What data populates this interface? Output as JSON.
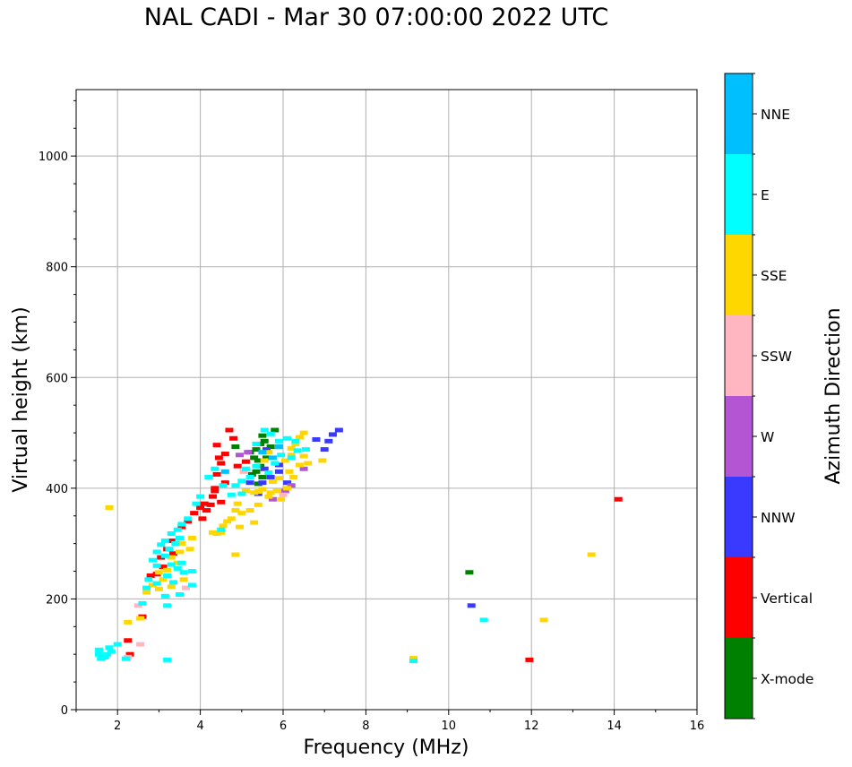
{
  "chart_data": {
    "type": "scatter",
    "title": "NAL CADI - Mar 30 07:00:00 2022 UTC",
    "xlabel": "Frequency (MHz)",
    "ylabel": "Virtual height (km)",
    "xlim": [
      1,
      16
    ],
    "ylim": [
      0,
      1120
    ],
    "xticks": [
      2,
      4,
      6,
      8,
      10,
      12,
      14,
      16
    ],
    "yticks": [
      0,
      200,
      400,
      600,
      800,
      1000
    ],
    "grid": true,
    "colorbar": {
      "title": "Azimuth Direction",
      "categories": [
        "X-mode",
        "Vertical",
        "NNW",
        "W",
        "SSW",
        "SSE",
        "E",
        "NNE"
      ],
      "colors": [
        "#008000",
        "#ff0000",
        "#3a3aff",
        "#b455d4",
        "#ffb6c1",
        "#ffd700",
        "#00ffff",
        "#00bfff"
      ]
    },
    "series": [
      {
        "name": "X-mode",
        "color": "#008000",
        "points": [
          [
            4.85,
            475
          ],
          [
            5.2,
            465
          ],
          [
            5.35,
            470
          ],
          [
            5.4,
            450
          ],
          [
            5.45,
            440
          ],
          [
            5.35,
            430
          ],
          [
            5.5,
            420
          ],
          [
            5.55,
            485
          ],
          [
            5.5,
            495
          ],
          [
            5.6,
            455
          ],
          [
            5.7,
            475
          ],
          [
            5.45,
            480
          ],
          [
            5.3,
            455
          ],
          [
            5.25,
            425
          ],
          [
            5.8,
            505
          ],
          [
            5.4,
            408
          ],
          [
            10.5,
            248
          ]
        ]
      },
      {
        "name": "Vertical",
        "color": "#ff0000",
        "points": [
          [
            4.7,
            505
          ],
          [
            4.8,
            490
          ],
          [
            4.4,
            478
          ],
          [
            4.5,
            445
          ],
          [
            4.6,
            462
          ],
          [
            4.4,
            425
          ],
          [
            4.35,
            400
          ],
          [
            4.3,
            385
          ],
          [
            4.25,
            370
          ],
          [
            4.1,
            372
          ],
          [
            4.15,
            360
          ],
          [
            4.05,
            345
          ],
          [
            3.85,
            355
          ],
          [
            3.7,
            340
          ],
          [
            3.55,
            330
          ],
          [
            3.3,
            305
          ],
          [
            3.2,
            290
          ],
          [
            3.35,
            282
          ],
          [
            3.05,
            275
          ],
          [
            3.1,
            258
          ],
          [
            2.95,
            245
          ],
          [
            2.8,
            242
          ],
          [
            2.25,
            125
          ],
          [
            2.3,
            100
          ],
          [
            2.6,
            168
          ],
          [
            4.5,
            375
          ],
          [
            4.6,
            410
          ],
          [
            4.45,
            455
          ],
          [
            5.1,
            448
          ],
          [
            4.9,
            440
          ],
          [
            1.65,
            95
          ],
          [
            11.95,
            90
          ],
          [
            14.1,
            380
          ],
          [
            4.35,
            395
          ],
          [
            4.0,
            365
          ]
        ]
      },
      {
        "name": "NNW",
        "color": "#3a3aff",
        "points": [
          [
            7.35,
            505
          ],
          [
            7.2,
            497
          ],
          [
            7.1,
            485
          ],
          [
            6.8,
            488
          ],
          [
            5.9,
            442
          ],
          [
            5.9,
            430
          ],
          [
            5.7,
            420
          ],
          [
            5.5,
            410
          ],
          [
            5.4,
            390
          ],
          [
            5.55,
            435
          ],
          [
            6.1,
            410
          ],
          [
            7.0,
            470
          ],
          [
            5.6,
            470
          ],
          [
            10.55,
            188
          ],
          [
            5.2,
            410
          ]
        ]
      },
      {
        "name": "W",
        "color": "#b455d4",
        "points": [
          [
            6.2,
            405
          ],
          [
            6.05,
            395
          ],
          [
            5.15,
            465
          ],
          [
            5.75,
            380
          ],
          [
            4.95,
            460
          ],
          [
            6.5,
            435
          ]
        ]
      },
      {
        "name": "SSW",
        "color": "#ffb6c1",
        "points": [
          [
            2.55,
            118
          ],
          [
            2.5,
            188
          ],
          [
            6.0,
            388
          ],
          [
            5.05,
            430
          ],
          [
            3.65,
            220
          ],
          [
            3.4,
            300
          ],
          [
            2.25,
            95
          ]
        ]
      },
      {
        "name": "SSE",
        "color": "#ffd700",
        "points": [
          [
            6.5,
            500
          ],
          [
            6.4,
            492
          ],
          [
            6.3,
            480
          ],
          [
            6.2,
            472
          ],
          [
            6.5,
            458
          ],
          [
            6.2,
            460
          ],
          [
            6.05,
            450
          ],
          [
            6.4,
            442
          ],
          [
            6.15,
            430
          ],
          [
            6.25,
            420
          ],
          [
            5.9,
            418
          ],
          [
            5.75,
            412
          ],
          [
            6.1,
            400
          ],
          [
            5.85,
            395
          ],
          [
            5.7,
            392
          ],
          [
            5.65,
            385
          ],
          [
            5.95,
            380
          ],
          [
            5.5,
            398
          ],
          [
            5.4,
            394
          ],
          [
            5.3,
            392
          ],
          [
            5.1,
            395
          ],
          [
            4.9,
            372
          ],
          [
            4.85,
            360
          ],
          [
            4.75,
            345
          ],
          [
            4.65,
            340
          ],
          [
            4.55,
            332
          ],
          [
            4.4,
            318
          ],
          [
            4.3,
            320
          ],
          [
            5.4,
            370
          ],
          [
            5.2,
            360
          ],
          [
            5.0,
            355
          ],
          [
            5.3,
            338
          ],
          [
            4.95,
            330
          ],
          [
            3.8,
            310
          ],
          [
            3.55,
            300
          ],
          [
            3.5,
            285
          ],
          [
            3.75,
            290
          ],
          [
            3.3,
            275
          ],
          [
            3.45,
            265
          ],
          [
            3.2,
            252
          ],
          [
            3.0,
            248
          ],
          [
            3.1,
            235
          ],
          [
            2.85,
            225
          ],
          [
            2.7,
            212
          ],
          [
            3.0,
            218
          ],
          [
            3.3,
            222
          ],
          [
            2.55,
            165
          ],
          [
            2.25,
            158
          ],
          [
            1.8,
            365
          ],
          [
            9.15,
            93
          ],
          [
            12.3,
            162
          ],
          [
            13.45,
            280
          ],
          [
            4.85,
            280
          ],
          [
            6.95,
            450
          ],
          [
            6.6,
            445
          ],
          [
            5.55,
            450
          ],
          [
            5.65,
            465
          ],
          [
            4.5,
            320
          ],
          [
            3.6,
            235
          ]
        ]
      },
      {
        "name": "E",
        "color": "#00ffff",
        "points": [
          [
            5.55,
            505
          ],
          [
            5.7,
            498
          ],
          [
            6.1,
            490
          ],
          [
            6.3,
            485
          ],
          [
            6.55,
            470
          ],
          [
            6.35,
            468
          ],
          [
            6.2,
            455
          ],
          [
            5.95,
            460
          ],
          [
            5.8,
            445
          ],
          [
            5.65,
            428
          ],
          [
            5.35,
            440
          ],
          [
            5.1,
            435
          ],
          [
            5.2,
            420
          ],
          [
            5.0,
            413
          ],
          [
            4.85,
            405
          ],
          [
            5.0,
            390
          ],
          [
            4.75,
            388
          ],
          [
            4.55,
            405
          ],
          [
            4.35,
            435
          ],
          [
            4.2,
            420
          ],
          [
            4.0,
            385
          ],
          [
            3.9,
            372
          ],
          [
            3.7,
            345
          ],
          [
            3.55,
            335
          ],
          [
            3.45,
            325
          ],
          [
            3.3,
            318
          ],
          [
            3.15,
            305
          ],
          [
            3.05,
            298
          ],
          [
            3.5,
            310
          ],
          [
            3.4,
            300
          ],
          [
            3.25,
            290
          ],
          [
            2.95,
            285
          ],
          [
            3.15,
            278
          ],
          [
            2.85,
            270
          ],
          [
            2.95,
            260
          ],
          [
            3.3,
            262
          ],
          [
            3.55,
            265
          ],
          [
            3.45,
            255
          ],
          [
            3.2,
            242
          ],
          [
            2.75,
            235
          ],
          [
            2.95,
            228
          ],
          [
            3.35,
            230
          ],
          [
            3.6,
            248
          ],
          [
            3.8,
            250
          ],
          [
            2.7,
            220
          ],
          [
            3.15,
            205
          ],
          [
            3.5,
            208
          ],
          [
            2.6,
            192
          ],
          [
            3.2,
            188
          ],
          [
            2.0,
            118
          ],
          [
            2.2,
            92
          ],
          [
            1.8,
            112
          ],
          [
            1.55,
            108
          ],
          [
            1.55,
            100
          ],
          [
            1.6,
            92
          ],
          [
            1.7,
            95
          ],
          [
            1.75,
            100
          ],
          [
            1.85,
            105
          ],
          [
            3.2,
            90
          ],
          [
            9.15,
            88
          ],
          [
            10.85,
            162
          ],
          [
            4.5,
            325
          ],
          [
            5.35,
            480
          ],
          [
            5.9,
            485
          ],
          [
            3.8,
            225
          ]
        ]
      },
      {
        "name": "NNE",
        "color": "#00bfff",
        "points": [
          [
            5.5,
            465
          ],
          [
            5.9,
            475
          ],
          [
            4.6,
            430
          ],
          [
            5.75,
            455
          ]
        ]
      }
    ]
  }
}
